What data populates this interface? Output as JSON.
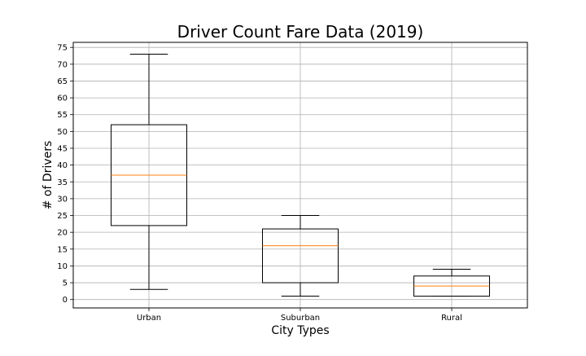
{
  "chart_data": {
    "type": "box",
    "title": "Driver Count Fare Data (2019)",
    "xlabel": "City Types",
    "ylabel": "# of Drivers",
    "ylim": [
      -2.5,
      76.5
    ],
    "yticks": [
      0,
      5,
      10,
      15,
      20,
      25,
      30,
      35,
      40,
      45,
      50,
      55,
      60,
      65,
      70,
      75
    ],
    "grid": true,
    "categories": [
      "Urban",
      "Suburban",
      "Rural"
    ],
    "boxes": [
      {
        "category": "Urban",
        "whisker_low": 3,
        "q1": 22,
        "median": 37,
        "q3": 52,
        "whisker_high": 73
      },
      {
        "category": "Suburban",
        "whisker_low": 1,
        "q1": 5,
        "median": 16,
        "q3": 21,
        "whisker_high": 25
      },
      {
        "category": "Rural",
        "whisker_low": 1,
        "q1": 1,
        "median": 4,
        "q3": 7,
        "whisker_high": 9
      }
    ],
    "colors": {
      "box": "#000000",
      "median": "#ff7f0e",
      "grid": "#b0b0b0"
    }
  }
}
